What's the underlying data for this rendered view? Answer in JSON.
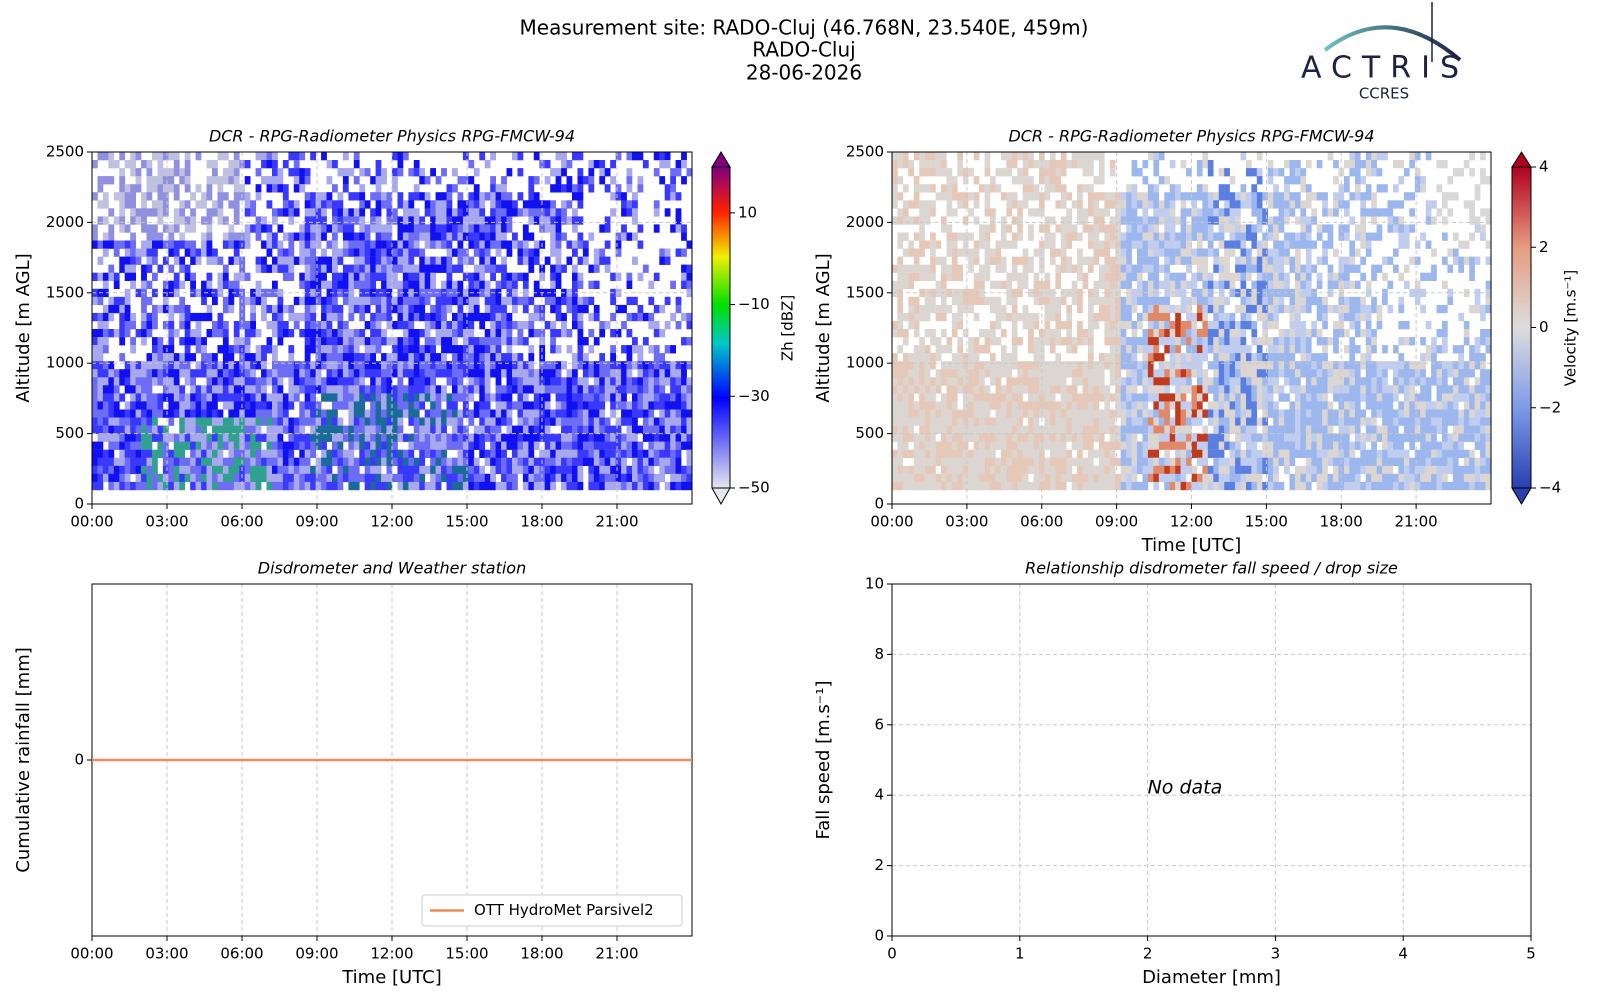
{
  "header": {
    "title": [
      "Measurement site: RADO-Cluj (46.768N, 23.540E, 459m)",
      "RADO-Cluj",
      "28-06-2026"
    ],
    "logo": "ACTRIS",
    "logo_sub": "CCRES"
  },
  "chart_data": [
    {
      "type": "heatmap",
      "title": "DCR - RPG-Radiometer Physics RPG-FMCW-94",
      "ylabel": "Altitude [m AGL]",
      "xlim": [
        0,
        24
      ],
      "xticks": [
        {
          "value": 0,
          "label": "00:00"
        },
        {
          "value": 3,
          "label": "03:00"
        },
        {
          "value": 6,
          "label": "06:00"
        },
        {
          "value": 9,
          "label": "09:00"
        },
        {
          "value": 12,
          "label": "12:00"
        },
        {
          "value": 15,
          "label": "15:00"
        },
        {
          "value": 18,
          "label": "18:00"
        },
        {
          "value": 21,
          "label": "21:00"
        }
      ],
      "ylim": [
        0,
        2500
      ],
      "yticks": [
        0,
        500,
        1000,
        1500,
        2000,
        2500
      ],
      "grid": true,
      "colorbar_label": "Zh [dBZ]",
      "clim": [
        -50,
        20
      ],
      "cticks": [
        {
          "value": 10,
          "label": "10"
        },
        {
          "value": -10,
          "label": "−10"
        },
        {
          "value": -30,
          "label": "−30"
        },
        {
          "value": -50,
          "label": "−50"
        }
      ],
      "colormap": "reflectivity"
    },
    {
      "type": "heatmap",
      "title": "DCR - RPG-Radiometer Physics RPG-FMCW-94",
      "ylabel": "Altitude [m AGL]",
      "xlabel": "Time [UTC]",
      "xlim": [
        0,
        24
      ],
      "xticks": [
        {
          "value": 0,
          "label": "00:00"
        },
        {
          "value": 3,
          "label": "03:00"
        },
        {
          "value": 6,
          "label": "06:00"
        },
        {
          "value": 9,
          "label": "09:00"
        },
        {
          "value": 12,
          "label": "12:00"
        },
        {
          "value": 15,
          "label": "15:00"
        },
        {
          "value": 18,
          "label": "18:00"
        },
        {
          "value": 21,
          "label": "21:00"
        }
      ],
      "ylim": [
        0,
        2500
      ],
      "yticks": [
        0,
        500,
        1000,
        1500,
        2000,
        2500
      ],
      "grid": true,
      "colorbar_label": "Velocity [m.s⁻¹]",
      "clim": [
        -4,
        4
      ],
      "cticks": [
        {
          "value": 4,
          "label": "4"
        },
        {
          "value": 2,
          "label": "2"
        },
        {
          "value": 0,
          "label": "0"
        },
        {
          "value": -2,
          "label": "−2"
        },
        {
          "value": -4,
          "label": "−4"
        }
      ],
      "colormap": "velocity"
    },
    {
      "type": "line",
      "title": "Disdrometer and Weather station",
      "ylabel": "Cumulative rainfall [mm]",
      "xlabel": "Time [UTC]",
      "xlim": [
        0,
        24
      ],
      "xticks": [
        {
          "value": 0,
          "label": "00:00"
        },
        {
          "value": 3,
          "label": "03:00"
        },
        {
          "value": 6,
          "label": "06:00"
        },
        {
          "value": 9,
          "label": "09:00"
        },
        {
          "value": 12,
          "label": "12:00"
        },
        {
          "value": 15,
          "label": "15:00"
        },
        {
          "value": 18,
          "label": "18:00"
        },
        {
          "value": 21,
          "label": "21:00"
        }
      ],
      "ylim": [
        -0.05,
        0.05
      ],
      "yticks": [
        0
      ],
      "grid": true,
      "legend": "lower right",
      "x": [
        0,
        24
      ],
      "series": [
        {
          "name": "OTT HydroMet Parsivel2",
          "color": "#f08a5d",
          "values": [
            0,
            0
          ]
        }
      ]
    },
    {
      "type": "scatter",
      "title": "Relationship disdrometer fall speed / drop size",
      "ylabel": "Fall speed [m.s⁻¹]",
      "xlabel": "Diameter [mm]",
      "xlim": [
        0,
        5
      ],
      "xticks": [
        0,
        1,
        2,
        3,
        4,
        5
      ],
      "ylim": [
        0,
        10
      ],
      "yticks": [
        0,
        2,
        4,
        6,
        8,
        10
      ],
      "grid": true,
      "annotation": "No data"
    }
  ]
}
